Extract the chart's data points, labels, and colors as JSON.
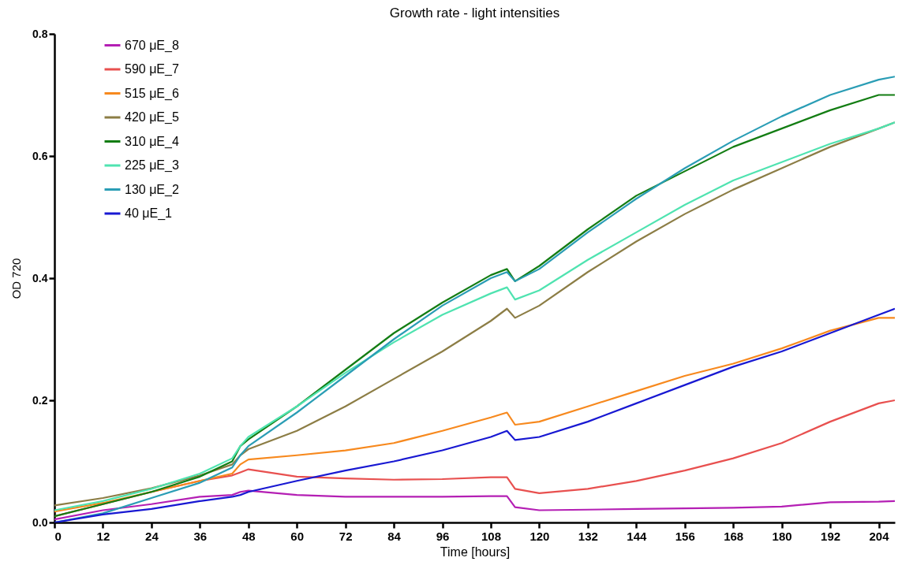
{
  "chart_data": {
    "type": "line",
    "title": "Growth rate - light intensities",
    "xlabel": "Time [hours]",
    "ylabel": "OD 720",
    "x": [
      0,
      12,
      24,
      36,
      44,
      46,
      48,
      60,
      72,
      84,
      96,
      108,
      112,
      114,
      120,
      132,
      144,
      156,
      168,
      180,
      192,
      204,
      208
    ],
    "xlim": [
      0,
      208
    ],
    "xticks": [
      0,
      12,
      24,
      36,
      48,
      60,
      72,
      84,
      96,
      108,
      120,
      132,
      144,
      156,
      168,
      180,
      192,
      204
    ],
    "ylim": [
      0,
      0.8
    ],
    "yticks": [
      {
        "value": 0,
        "label": "0.0"
      },
      0.2,
      0.4,
      0.6,
      0.8
    ],
    "grid": false,
    "legend": "top left",
    "marker": "none",
    "line_style": "solid",
    "series": [
      {
        "name": "670 μE_8",
        "color": "#b41fb4",
        "values": [
          0.005,
          0.02,
          0.03,
          0.042,
          0.045,
          0.05,
          0.052,
          0.045,
          0.042,
          0.042,
          0.042,
          0.043,
          0.043,
          0.025,
          0.02,
          0.021,
          0.022,
          0.023,
          0.024,
          0.026,
          0.033,
          0.034,
          0.035
        ]
      },
      {
        "name": "590 μE_7",
        "color": "#e8504f",
        "values": [
          0.01,
          0.03,
          0.05,
          0.068,
          0.077,
          0.082,
          0.087,
          0.075,
          0.072,
          0.07,
          0.071,
          0.074,
          0.074,
          0.055,
          0.048,
          0.055,
          0.068,
          0.085,
          0.105,
          0.13,
          0.165,
          0.195,
          0.2
        ]
      },
      {
        "name": "515 μE_6",
        "color": "#f7891e",
        "values": [
          0.018,
          0.032,
          0.05,
          0.068,
          0.08,
          0.095,
          0.103,
          0.11,
          0.118,
          0.13,
          0.15,
          0.172,
          0.18,
          0.16,
          0.165,
          0.19,
          0.215,
          0.24,
          0.26,
          0.285,
          0.314,
          0.335,
          0.335
        ]
      },
      {
        "name": "420 μE_5",
        "color": "#8c7d45",
        "values": [
          0.028,
          0.04,
          0.056,
          0.077,
          0.095,
          0.11,
          0.12,
          0.15,
          0.19,
          0.235,
          0.28,
          0.33,
          0.35,
          0.335,
          0.355,
          0.41,
          0.46,
          0.505,
          0.545,
          0.58,
          0.615,
          0.645,
          0.655
        ]
      },
      {
        "name": "310 μE_4",
        "color": "#137d13",
        "values": [
          0.01,
          0.03,
          0.05,
          0.075,
          0.1,
          0.125,
          0.136,
          0.19,
          0.25,
          0.31,
          0.36,
          0.405,
          0.415,
          0.395,
          0.42,
          0.48,
          0.535,
          0.575,
          0.615,
          0.645,
          0.675,
          0.7,
          0.7
        ]
      },
      {
        "name": "225 μE_3",
        "color": "#4fe3b0",
        "values": [
          0.02,
          0.035,
          0.055,
          0.08,
          0.105,
          0.125,
          0.14,
          0.19,
          0.245,
          0.295,
          0.34,
          0.375,
          0.385,
          0.365,
          0.38,
          0.43,
          0.475,
          0.52,
          0.56,
          0.59,
          0.62,
          0.645,
          0.655
        ]
      },
      {
        "name": "130 μE_2",
        "color": "#2a9db5",
        "values": [
          0.0,
          0.015,
          0.04,
          0.065,
          0.09,
          0.11,
          0.125,
          0.18,
          0.24,
          0.3,
          0.355,
          0.4,
          0.41,
          0.395,
          0.415,
          0.475,
          0.53,
          0.58,
          0.625,
          0.665,
          0.7,
          0.725,
          0.73
        ]
      },
      {
        "name": "40 μE_1",
        "color": "#1818d2",
        "values": [
          0.0,
          0.013,
          0.022,
          0.035,
          0.042,
          0.045,
          0.05,
          0.068,
          0.085,
          0.1,
          0.118,
          0.14,
          0.15,
          0.135,
          0.14,
          0.165,
          0.195,
          0.225,
          0.255,
          0.28,
          0.31,
          0.34,
          0.35
        ]
      }
    ]
  }
}
